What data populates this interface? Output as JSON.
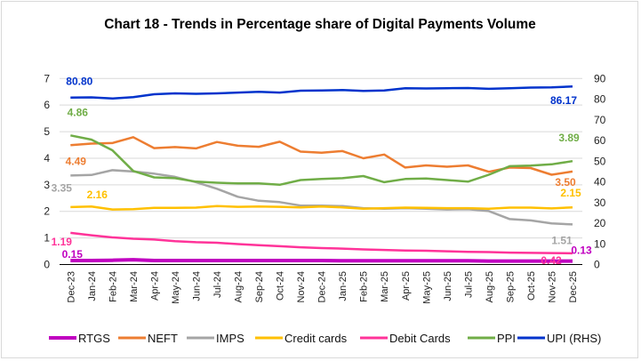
{
  "chart_data": {
    "type": "line",
    "title": "Chart 18 - Trends in Percentage share of Digital Payments Volume",
    "categories": [
      "Dec-23",
      "Jan-24",
      "Feb-24",
      "Mar-24",
      "Apr-24",
      "May-24",
      "Jun-24",
      "Jul-24",
      "Aug-24",
      "Sep-24",
      "Oct-24",
      "Nov-24",
      "Dec-24",
      "Jan-25",
      "Feb-25",
      "Mar-25",
      "Apr-25",
      "May-25",
      "Jun-25",
      "Jul-25",
      "Aug-25",
      "Sep-25",
      "Oct-25",
      "Nov-25",
      "Dec-25"
    ],
    "y_left": {
      "min": 0,
      "max": 7,
      "ticks": [
        "0",
        "1",
        "2",
        "3",
        "4",
        "5",
        "6",
        "7"
      ]
    },
    "y_right": {
      "min": 0,
      "max": 90,
      "ticks": [
        "0",
        "10",
        "20",
        "30",
        "40",
        "50",
        "60",
        "70",
        "80",
        "90"
      ]
    },
    "grid": true,
    "legend_position": "bottom",
    "series": [
      {
        "name": "RTGS",
        "color": "#C000C0",
        "axis": "left",
        "values": [
          0.15,
          0.15,
          0.16,
          0.18,
          0.15,
          0.15,
          0.15,
          0.15,
          0.15,
          0.15,
          0.15,
          0.15,
          0.15,
          0.14,
          0.14,
          0.14,
          0.14,
          0.14,
          0.14,
          0.14,
          0.13,
          0.13,
          0.13,
          0.13,
          0.13
        ],
        "labels": {
          "first": "0.15",
          "last": "0.13"
        }
      },
      {
        "name": "NEFT",
        "color": "#ED7D31",
        "axis": "left",
        "values": [
          4.49,
          4.55,
          4.57,
          4.79,
          4.38,
          4.42,
          4.37,
          4.61,
          4.47,
          4.43,
          4.62,
          4.25,
          4.21,
          4.27,
          4.0,
          4.14,
          3.65,
          3.73,
          3.68,
          3.73,
          3.49,
          3.65,
          3.63,
          3.38,
          3.5
        ],
        "labels": {
          "first": "4.49",
          "last": "3.50"
        }
      },
      {
        "name": "IMPS",
        "color": "#A5A5A5",
        "axis": "left",
        "values": [
          3.35,
          3.37,
          3.55,
          3.5,
          3.42,
          3.3,
          3.1,
          2.85,
          2.55,
          2.4,
          2.35,
          2.22,
          2.22,
          2.2,
          2.12,
          2.1,
          2.12,
          2.1,
          2.07,
          2.08,
          2.01,
          1.71,
          1.66,
          1.55,
          1.51
        ],
        "labels": {
          "first": "3.35",
          "last": "1.51"
        }
      },
      {
        "name": "Credit cards",
        "color": "#FFC000",
        "axis": "left",
        "values": [
          2.16,
          2.18,
          2.07,
          2.08,
          2.13,
          2.13,
          2.14,
          2.2,
          2.17,
          2.18,
          2.17,
          2.15,
          2.18,
          2.15,
          2.1,
          2.12,
          2.14,
          2.13,
          2.12,
          2.12,
          2.1,
          2.14,
          2.14,
          2.11,
          2.15
        ],
        "labels": {
          "first": "2.16",
          "last": "2.15"
        }
      },
      {
        "name": "Debit Cards",
        "color": "#FF3399",
        "axis": "left",
        "values": [
          1.19,
          1.1,
          1.02,
          0.97,
          0.94,
          0.88,
          0.84,
          0.82,
          0.77,
          0.73,
          0.69,
          0.65,
          0.62,
          0.6,
          0.57,
          0.55,
          0.53,
          0.52,
          0.5,
          0.48,
          0.47,
          0.45,
          0.44,
          0.43,
          0.42
        ],
        "labels": {
          "first": "1.19",
          "last": "0.42"
        }
      },
      {
        "name": "PPI",
        "color": "#70AD47",
        "axis": "left",
        "values": [
          4.86,
          4.7,
          4.3,
          3.52,
          3.28,
          3.25,
          3.12,
          3.08,
          3.05,
          3.05,
          3.0,
          3.18,
          3.22,
          3.25,
          3.33,
          3.1,
          3.22,
          3.24,
          3.18,
          3.12,
          3.38,
          3.7,
          3.72,
          3.77,
          3.89
        ],
        "labels": {
          "first": "4.86",
          "last": "3.89"
        }
      },
      {
        "name": "UPI (RHS)",
        "color": "#0033CC",
        "axis": "right",
        "values": [
          80.8,
          80.9,
          80.3,
          81.0,
          82.4,
          82.8,
          82.6,
          82.8,
          83.2,
          83.6,
          83.2,
          84.1,
          84.2,
          84.4,
          84.0,
          84.2,
          85.3,
          85.2,
          85.3,
          85.4,
          85.0,
          85.3,
          85.6,
          85.7,
          86.17
        ],
        "labels": {
          "first": "80.80",
          "last": "86.17"
        }
      }
    ]
  }
}
